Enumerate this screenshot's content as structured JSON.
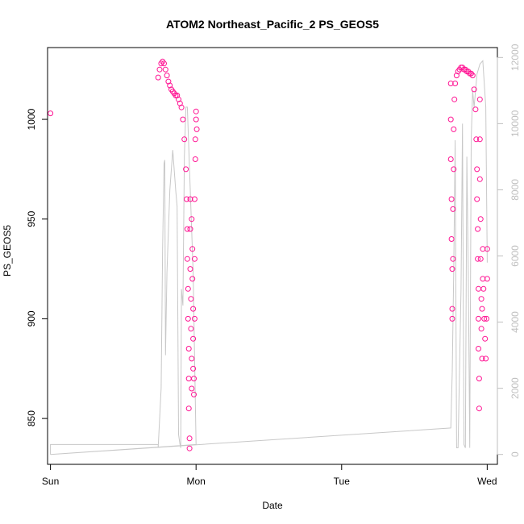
{
  "chart_data": {
    "type": "scatter",
    "title": "ATOM2 Northeast_Pacific_2 PS_GEOS5",
    "xlabel": "Date",
    "ylabel": "PS_GEOS5",
    "x_ticks": [
      "Sun",
      "Mon",
      "Tue",
      "Wed"
    ],
    "xlim": [
      -0.02,
      3.07
    ],
    "ylim_left": [
      827.0,
      1036.0
    ],
    "y_ticks_left": [
      850,
      900,
      950,
      1000
    ],
    "ylim_right": [
      -300,
      12300
    ],
    "y_ticks_right": [
      0,
      2000,
      4000,
      6000,
      8000,
      10000,
      12000
    ],
    "grid": false,
    "legend": "none",
    "colors": {
      "points": "#ff1493",
      "altitude": "#c8c8c8",
      "axis": "#000000",
      "right_axis": "#bfbfbf"
    },
    "series": [
      {
        "type": "scatter",
        "axis": "left",
        "x": [
          0.0,
          0.74,
          0.75,
          0.76,
          0.77,
          0.78,
          0.79,
          0.8,
          0.81,
          0.82,
          0.83,
          0.84,
          0.85,
          0.86,
          0.87,
          0.88,
          0.89,
          0.9,
          0.91,
          0.92,
          0.93,
          0.935,
          0.94,
          0.94,
          0.945,
          0.945,
          0.95,
          0.95,
          0.95,
          0.955,
          0.955,
          0.96,
          0.96,
          0.96,
          0.965,
          0.965,
          0.97,
          0.97,
          0.97,
          0.975,
          0.975,
          0.98,
          0.98,
          0.98,
          0.985,
          0.985,
          0.99,
          0.99,
          0.99,
          0.995,
          0.995,
          1.0,
          1.0,
          1.005,
          2.75,
          2.75,
          2.75,
          2.755,
          2.755,
          2.76,
          2.76,
          2.76,
          2.765,
          2.765,
          2.77,
          2.77,
          2.775,
          2.78,
          2.79,
          2.8,
          2.81,
          2.82,
          2.83,
          2.84,
          2.85,
          2.86,
          2.87,
          2.88,
          2.89,
          2.9,
          2.91,
          2.92,
          2.925,
          2.93,
          2.93,
          2.935,
          2.935,
          2.94,
          2.94,
          2.94,
          2.945,
          2.945,
          2.95,
          2.95,
          2.95,
          2.955,
          2.955,
          2.96,
          2.96,
          2.965,
          2.965,
          2.97,
          2.97,
          2.975,
          2.98,
          2.985,
          2.99,
          2.995,
          3.0,
          3.0
        ],
        "y": [
          1003,
          1021,
          1025,
          1028,
          1029,
          1028,
          1025,
          1022,
          1019,
          1017,
          1015,
          1014,
          1013,
          1012,
          1012,
          1010,
          1008,
          1006,
          1000,
          990,
          975,
          960,
          945,
          930,
          915,
          900,
          885,
          870,
          855,
          840,
          835,
          960,
          945,
          925,
          910,
          895,
          880,
          865,
          950,
          935,
          920,
          905,
          890,
          875,
          862,
          870,
          900,
          930,
          960,
          980,
          990,
          1000,
          1004,
          995,
          1018,
          1000,
          980,
          960,
          940,
          925,
          905,
          900,
          930,
          955,
          975,
          995,
          1010,
          1018,
          1022,
          1024,
          1025,
          1026,
          1026,
          1025,
          1025,
          1024,
          1024,
          1023,
          1023,
          1022,
          1015,
          1005,
          990,
          975,
          960,
          945,
          930,
          915,
          900,
          885,
          870,
          855,
          1010,
          990,
          970,
          950,
          930,
          910,
          895,
          880,
          905,
          920,
          935,
          915,
          900,
          890,
          880,
          900,
          935,
          920
        ]
      },
      {
        "type": "line",
        "axis": "right",
        "x": [
          0.0,
          0.0,
          0.74,
          0.74,
          0.76,
          0.77,
          0.78,
          0.785,
          0.79,
          0.8,
          0.82,
          0.84,
          0.86,
          0.87,
          0.88,
          0.89,
          0.895,
          0.9,
          0.91,
          0.92,
          0.93,
          0.94,
          0.96,
          0.98,
          1.0,
          0.0,
          2.75,
          2.76,
          2.77,
          2.78,
          2.79,
          2.8,
          2.82,
          2.83,
          2.84,
          2.85,
          2.86,
          2.87,
          2.88,
          2.89,
          2.9,
          2.91,
          2.93,
          2.95,
          2.97,
          2.99,
          3.0
        ],
        "y": [
          0,
          300,
          300,
          200,
          2000,
          6200,
          8800,
          8900,
          3000,
          5500,
          8000,
          9200,
          8000,
          7500,
          600,
          300,
          200,
          5000,
          4500,
          9000,
          10500,
          10500,
          8000,
          5500,
          300,
          0,
          800,
          2500,
          5500,
          9500,
          200,
          200,
          5000,
          10000,
          300,
          200,
          9000,
          5500,
          200,
          9500,
          11000,
          10500,
          11500,
          11800,
          11900,
          10500,
          5800
        ]
      }
    ]
  }
}
